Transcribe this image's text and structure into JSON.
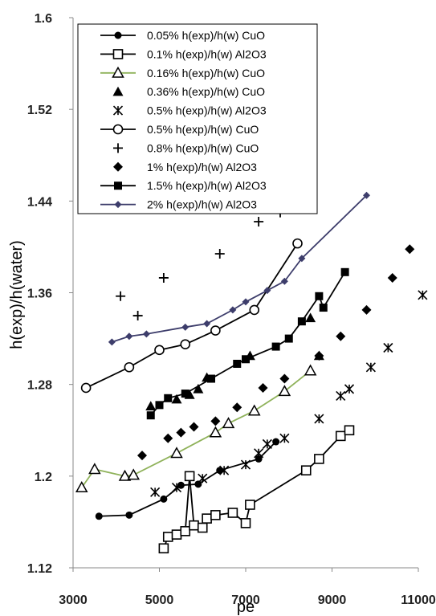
{
  "chart_data": {
    "type": "scatter",
    "xlabel": "pe",
    "ylabel": "h(exp)/h(water)",
    "xlim": [
      3000,
      11000
    ],
    "ylim": [
      1.12,
      1.6
    ],
    "xticks": [
      "3000",
      "5000",
      "7000",
      "9000",
      "11000"
    ],
    "yticks": [
      "1.12",
      "1.2",
      "1.28",
      "1.36",
      "1.44",
      "1.52",
      "1.6"
    ],
    "grid": false,
    "legend_position": "top-left",
    "series": [
      {
        "name": "0.05% h(exp)/h(w)  CuO",
        "marker": "circle-filled",
        "line": true,
        "color": "#000000",
        "points": [
          [
            3600,
            1.165
          ],
          [
            4300,
            1.166
          ],
          [
            5100,
            1.18
          ],
          [
            5500,
            1.192
          ],
          [
            5900,
            1.193
          ],
          [
            6400,
            1.205
          ],
          [
            7300,
            1.215
          ],
          [
            7700,
            1.23
          ]
        ]
      },
      {
        "name": "0.1% h(exp)/h(w)  Al2O3",
        "marker": "square-open",
        "line": true,
        "color": "#000000",
        "points": [
          [
            5100,
            1.137
          ],
          [
            5200,
            1.147
          ],
          [
            5400,
            1.149
          ],
          [
            5600,
            1.152
          ],
          [
            5700,
            1.2
          ],
          [
            5800,
            1.157
          ],
          [
            6000,
            1.155
          ],
          [
            6100,
            1.163
          ],
          [
            6300,
            1.166
          ],
          [
            6700,
            1.168
          ],
          [
            7000,
            1.159
          ],
          [
            7100,
            1.175
          ],
          [
            8400,
            1.205
          ],
          [
            8700,
            1.215
          ],
          [
            9200,
            1.235
          ],
          [
            9400,
            1.24
          ]
        ]
      },
      {
        "name": "0.16% h(exp)/h(w) CuO",
        "marker": "triangle-open",
        "line": true,
        "color": "#8FB25A",
        "points": [
          [
            3200,
            1.19
          ],
          [
            3500,
            1.206
          ],
          [
            4200,
            1.2
          ],
          [
            4400,
            1.201
          ],
          [
            5400,
            1.22
          ],
          [
            6300,
            1.238
          ],
          [
            6600,
            1.246
          ],
          [
            7200,
            1.257
          ],
          [
            7900,
            1.274
          ],
          [
            8500,
            1.292
          ]
        ]
      },
      {
        "name": "0.36% h(exp)/h(w)  CuO",
        "marker": "triangle-filled",
        "line": false,
        "color": "#000000",
        "points": [
          [
            4800,
            1.261
          ],
          [
            5400,
            1.267
          ],
          [
            5700,
            1.271
          ],
          [
            5900,
            1.276
          ],
          [
            6100,
            1.286
          ],
          [
            7100,
            1.305
          ],
          [
            8500,
            1.338
          ],
          [
            8700,
            1.305
          ]
        ]
      },
      {
        "name": "0.5% h(exp)/h(w)  Al2O3",
        "marker": "asterisk",
        "line": false,
        "color": "#000000",
        "points": [
          [
            4900,
            1.186
          ],
          [
            5400,
            1.19
          ],
          [
            6000,
            1.198
          ],
          [
            6500,
            1.205
          ],
          [
            7000,
            1.21
          ],
          [
            7300,
            1.22
          ],
          [
            7500,
            1.228
          ],
          [
            7900,
            1.233
          ],
          [
            8700,
            1.25
          ],
          [
            9200,
            1.27
          ],
          [
            9400,
            1.276
          ],
          [
            9900,
            1.295
          ],
          [
            10300,
            1.312
          ],
          [
            11100,
            1.358
          ]
        ]
      },
      {
        "name": "0.5% h(exp)/h(w) CuO",
        "marker": "circle-open",
        "line": true,
        "color": "#000000",
        "points": [
          [
            3300,
            1.277
          ],
          [
            4300,
            1.295
          ],
          [
            5000,
            1.31
          ],
          [
            5600,
            1.315
          ],
          [
            6300,
            1.327
          ],
          [
            7200,
            1.345
          ],
          [
            8200,
            1.403
          ]
        ]
      },
      {
        "name": "0.8% h(exp)/h(w)  CuO",
        "marker": "plus",
        "line": false,
        "color": "#000000",
        "points": [
          [
            4100,
            1.357
          ],
          [
            4500,
            1.34
          ],
          [
            5100,
            1.373
          ],
          [
            6400,
            1.394
          ],
          [
            7300,
            1.422
          ],
          [
            7800,
            1.43
          ]
        ]
      },
      {
        "name": "1% h(exp)/h(w)  Al2O3",
        "marker": "diamond-filled",
        "line": false,
        "color": "#000000",
        "points": [
          [
            4600,
            1.218
          ],
          [
            5200,
            1.233
          ],
          [
            5500,
            1.238
          ],
          [
            5800,
            1.243
          ],
          [
            6300,
            1.248
          ],
          [
            6800,
            1.26
          ],
          [
            7400,
            1.277
          ],
          [
            7900,
            1.285
          ],
          [
            8700,
            1.305
          ],
          [
            9200,
            1.322
          ],
          [
            9800,
            1.345
          ],
          [
            10400,
            1.373
          ],
          [
            10800,
            1.398
          ]
        ]
      },
      {
        "name": "1.5% h(exp)/h(w)  Al2O3",
        "marker": "square-filled",
        "line": true,
        "color": "#000000",
        "points": [
          [
            4800,
            1.253
          ],
          [
            5000,
            1.262
          ],
          [
            5200,
            1.268
          ],
          [
            5600,
            1.272
          ],
          [
            6200,
            1.285
          ],
          [
            6800,
            1.298
          ],
          [
            7000,
            1.302
          ],
          [
            7700,
            1.313
          ],
          [
            8000,
            1.32
          ],
          [
            8300,
            1.335
          ],
          [
            8700,
            1.357
          ],
          [
            8800,
            1.347
          ],
          [
            9300,
            1.378
          ]
        ]
      },
      {
        "name": "2% h(exp)/h(w) Al2O3",
        "marker": "diamond-small",
        "line": true,
        "color": "#3D3D6B",
        "points": [
          [
            3900,
            1.317
          ],
          [
            4300,
            1.322
          ],
          [
            4700,
            1.324
          ],
          [
            5600,
            1.33
          ],
          [
            6100,
            1.333
          ],
          [
            6700,
            1.345
          ],
          [
            7000,
            1.352
          ],
          [
            7500,
            1.362
          ],
          [
            7900,
            1.37
          ],
          [
            8300,
            1.39
          ],
          [
            9800,
            1.445
          ]
        ]
      }
    ]
  }
}
